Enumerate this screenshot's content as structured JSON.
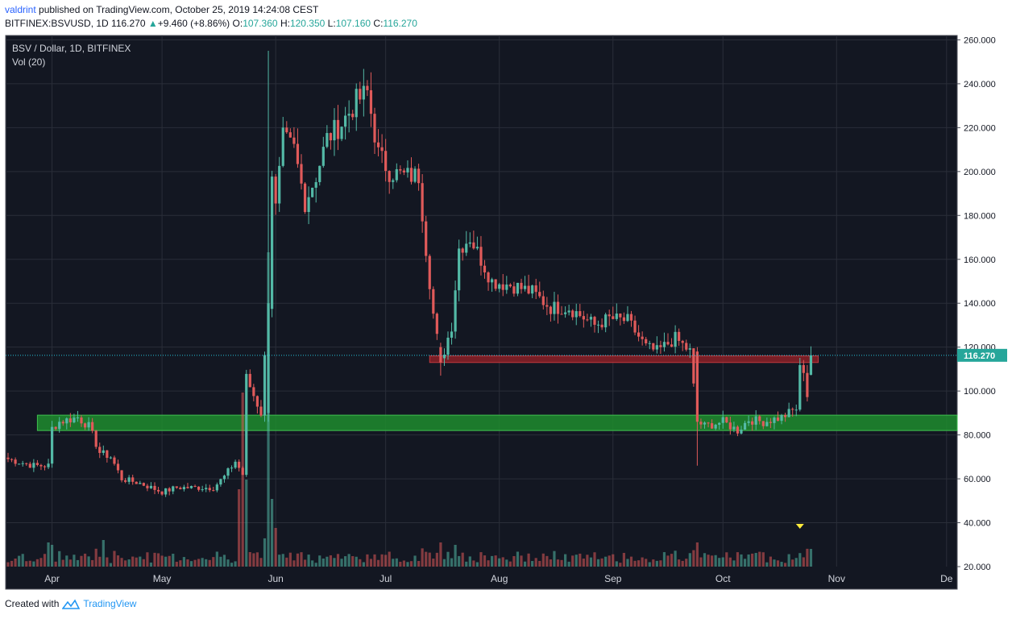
{
  "header": {
    "user": "valdrint",
    "published_text": "published on TradingView.com, October 25, 2019 14:24:08 CEST",
    "symbol": "BITFINEX:BSVUSD, 1D",
    "last": "116.270",
    "change": "+9.460 (+8.86%)",
    "o_label": "O:",
    "o_value": "107.360",
    "h_label": "H:",
    "h_value": "120.350",
    "l_label": "L:",
    "l_value": "107.160",
    "c_label": "C:",
    "c_value": "116.270"
  },
  "pane": {
    "title": "BSV / Dollar, 1D, BITFINEX",
    "indicator": "Vol (20)"
  },
  "footer": {
    "created_with": "Created with",
    "brand": "TradingView"
  },
  "colors": {
    "background": "#131722",
    "grid": "#2a2e39",
    "up": "#53b9a6",
    "down": "#e05a5a",
    "support_zone": "#1e8c2e",
    "resistance_zone": "#8b2027",
    "price_line": "#26c6da",
    "price_label_bg": "#26a69a",
    "marker": "#ffeb3b"
  },
  "chart_data": {
    "type": "candlestick",
    "symbol": "BSV / Dollar",
    "timeframe": "1D",
    "exchange": "BITFINEX",
    "ylim": [
      20,
      262
    ],
    "y_ticks": [
      "260.000",
      "240.000",
      "220.000",
      "200.000",
      "180.000",
      "160.000",
      "140.000",
      "120.000",
      "100.000",
      "80.000",
      "60.000",
      "40.000",
      "20.000"
    ],
    "y_tick_values": [
      260,
      240,
      220,
      200,
      180,
      160,
      140,
      120,
      100,
      80,
      60,
      40,
      20
    ],
    "x_ticks": [
      "Apr",
      "May",
      "Jun",
      "Jul",
      "Aug",
      "Sep",
      "Oct",
      "Nov",
      "De"
    ],
    "x_start": "2019-03-20",
    "last_price": 116.27,
    "last_price_label": "116.270",
    "zones": [
      {
        "kind": "resistance",
        "low": 113,
        "high": 116,
        "from": "2019-07-13",
        "to": "2019-10-27"
      },
      {
        "kind": "support",
        "low": 82,
        "high": 89,
        "from": "2019-03-28",
        "to": "2019-12-31"
      }
    ],
    "waypoints": [
      [
        "2019-03-20",
        69
      ],
      [
        "2019-03-27",
        66
      ],
      [
        "2019-03-31",
        66
      ],
      [
        "2019-04-01",
        83
      ],
      [
        "2019-04-03",
        86
      ],
      [
        "2019-04-08",
        88
      ],
      [
        "2019-04-11",
        84
      ],
      [
        "2019-04-14",
        72
      ],
      [
        "2019-04-17",
        70
      ],
      [
        "2019-04-20",
        60
      ],
      [
        "2019-04-25",
        58
      ],
      [
        "2019-05-01",
        54
      ],
      [
        "2019-05-05",
        56
      ],
      [
        "2019-05-15",
        56
      ],
      [
        "2019-05-18",
        61
      ],
      [
        "2019-05-21",
        68
      ],
      [
        "2019-05-23",
        62
      ],
      [
        "2019-05-24",
        106
      ],
      [
        "2019-05-26",
        98
      ],
      [
        "2019-05-28",
        90
      ],
      [
        "2019-05-30",
        140
      ],
      [
        "2019-05-31",
        200
      ],
      [
        "2019-06-01",
        183
      ],
      [
        "2019-06-03",
        215
      ],
      [
        "2019-06-06",
        210
      ],
      [
        "2019-06-09",
        186
      ],
      [
        "2019-06-12",
        198
      ],
      [
        "2019-06-15",
        215
      ],
      [
        "2019-06-19",
        222
      ],
      [
        "2019-06-23",
        232
      ],
      [
        "2019-06-26",
        236
      ],
      [
        "2019-06-29",
        208
      ],
      [
        "2019-07-02",
        200
      ],
      [
        "2019-07-06",
        198
      ],
      [
        "2019-07-10",
        198
      ],
      [
        "2019-07-12",
        165
      ],
      [
        "2019-07-14",
        135
      ],
      [
        "2019-07-16",
        113
      ],
      [
        "2019-07-19",
        130
      ],
      [
        "2019-07-21",
        165
      ],
      [
        "2019-07-24",
        170
      ],
      [
        "2019-07-27",
        160
      ],
      [
        "2019-07-30",
        150
      ],
      [
        "2019-08-05",
        148
      ],
      [
        "2019-08-10",
        145
      ],
      [
        "2019-08-15",
        138
      ],
      [
        "2019-08-20",
        138
      ],
      [
        "2019-08-27",
        130
      ],
      [
        "2019-08-31",
        133
      ],
      [
        "2019-09-05",
        132
      ],
      [
        "2019-09-10",
        120
      ],
      [
        "2019-09-13",
        118
      ],
      [
        "2019-09-18",
        124
      ],
      [
        "2019-09-22",
        118
      ],
      [
        "2019-09-24",
        86
      ],
      [
        "2019-09-26",
        84
      ],
      [
        "2019-10-01",
        86
      ],
      [
        "2019-10-05",
        82
      ],
      [
        "2019-10-08",
        87
      ],
      [
        "2019-10-12",
        86
      ],
      [
        "2019-10-17",
        88
      ],
      [
        "2019-10-21",
        92
      ],
      [
        "2019-10-22",
        110
      ],
      [
        "2019-10-23",
        110
      ],
      [
        "2019-10-24",
        98
      ],
      [
        "2019-10-25",
        116.27
      ]
    ],
    "events": [
      {
        "date": "2019-05-30",
        "open": 90,
        "high": 255,
        "low": 86,
        "close": 140
      },
      {
        "date": "2019-07-16",
        "open": 120,
        "high": 122,
        "low": 107,
        "close": 113
      },
      {
        "date": "2019-09-24",
        "open": 118,
        "high": 120,
        "low": 66,
        "close": 86
      },
      {
        "date": "2019-10-25",
        "open": 107.36,
        "high": 120.35,
        "low": 107.16,
        "close": 116.27
      }
    ],
    "volume_spikes": [
      {
        "date": "2019-03-31",
        "level": 0.5
      },
      {
        "date": "2019-04-15",
        "level": 0.55
      },
      {
        "date": "2019-05-22",
        "level": 1.6
      },
      {
        "date": "2019-05-23",
        "level": 3.6
      },
      {
        "date": "2019-05-24",
        "level": 1.8
      },
      {
        "date": "2019-05-30",
        "level": 6.5
      },
      {
        "date": "2019-05-31",
        "level": 1.4
      },
      {
        "date": "2019-06-01",
        "level": 0.8
      },
      {
        "date": "2019-07-16",
        "level": 0.5
      },
      {
        "date": "2019-07-20",
        "level": 0.45
      },
      {
        "date": "2019-09-24",
        "level": 0.5
      },
      {
        "date": "2019-10-22",
        "level": 0.28
      }
    ],
    "volume_marker_date": "2019-10-22"
  }
}
